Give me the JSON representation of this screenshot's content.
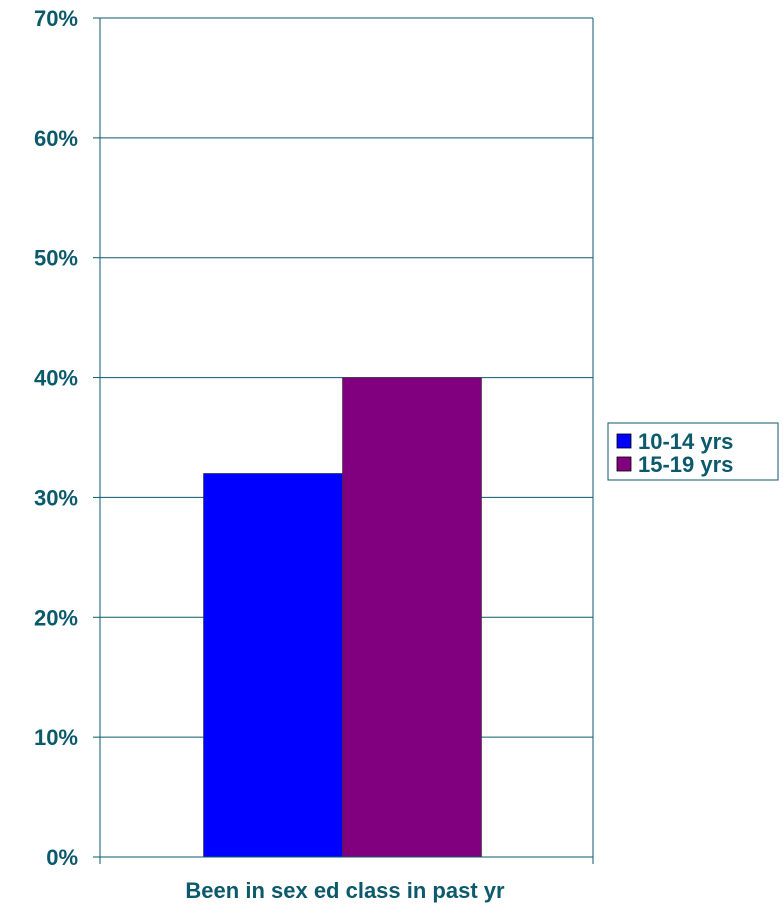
{
  "chart_data": {
    "type": "bar",
    "title": "",
    "xlabel": "Been in sex ed class in past yr",
    "ylabel": "",
    "categories": [
      "Been in sex ed class in past yr"
    ],
    "series": [
      {
        "name": "10-14 yrs",
        "values": [
          32
        ],
        "color": "#0000ff"
      },
      {
        "name": "15-19 yrs",
        "values": [
          40
        ],
        "color": "#800080"
      }
    ],
    "ylim": [
      0,
      70
    ],
    "yticks": [
      0,
      10,
      20,
      30,
      40,
      50,
      60,
      70
    ],
    "ytick_labels": [
      "0%",
      "10%",
      "20%",
      "30%",
      "40%",
      "50%",
      "60%",
      "70%"
    ],
    "y_unit": "percent",
    "grid": true,
    "legend_position": "right"
  },
  "colors": {
    "text": "#0b5a6b",
    "axis": "#0b5a6b"
  }
}
